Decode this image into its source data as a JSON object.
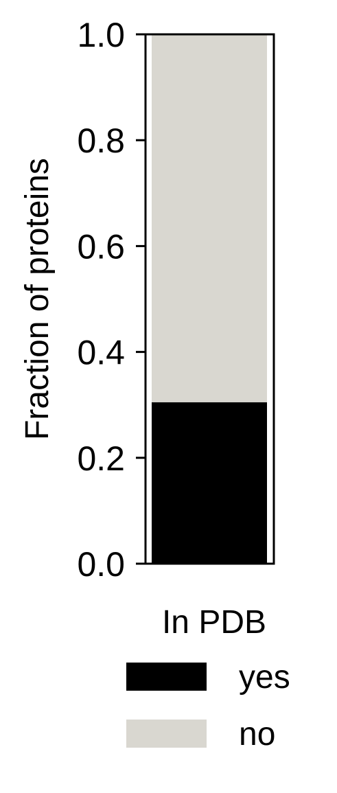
{
  "chart_data": {
    "type": "bar",
    "stacked": true,
    "categories": [
      ""
    ],
    "series": [
      {
        "name": "yes",
        "values": [
          0.305
        ],
        "color": "#000000"
      },
      {
        "name": "no",
        "values": [
          0.695
        ],
        "color": "#d9d7d0"
      }
    ],
    "xlabel": "In PDB",
    "ylabel": "Fraction of proteins",
    "ylim": [
      0,
      1
    ],
    "yticks": [
      0.0,
      0.2,
      0.4,
      0.6,
      0.8,
      1.0
    ],
    "ytick_labels": [
      "0.0",
      "0.2",
      "0.4",
      "0.6",
      "0.8",
      "1.0"
    ],
    "grid": false,
    "legend": {
      "title": "In PDB",
      "placement": "bottom",
      "entries": [
        "yes",
        "no"
      ]
    }
  }
}
